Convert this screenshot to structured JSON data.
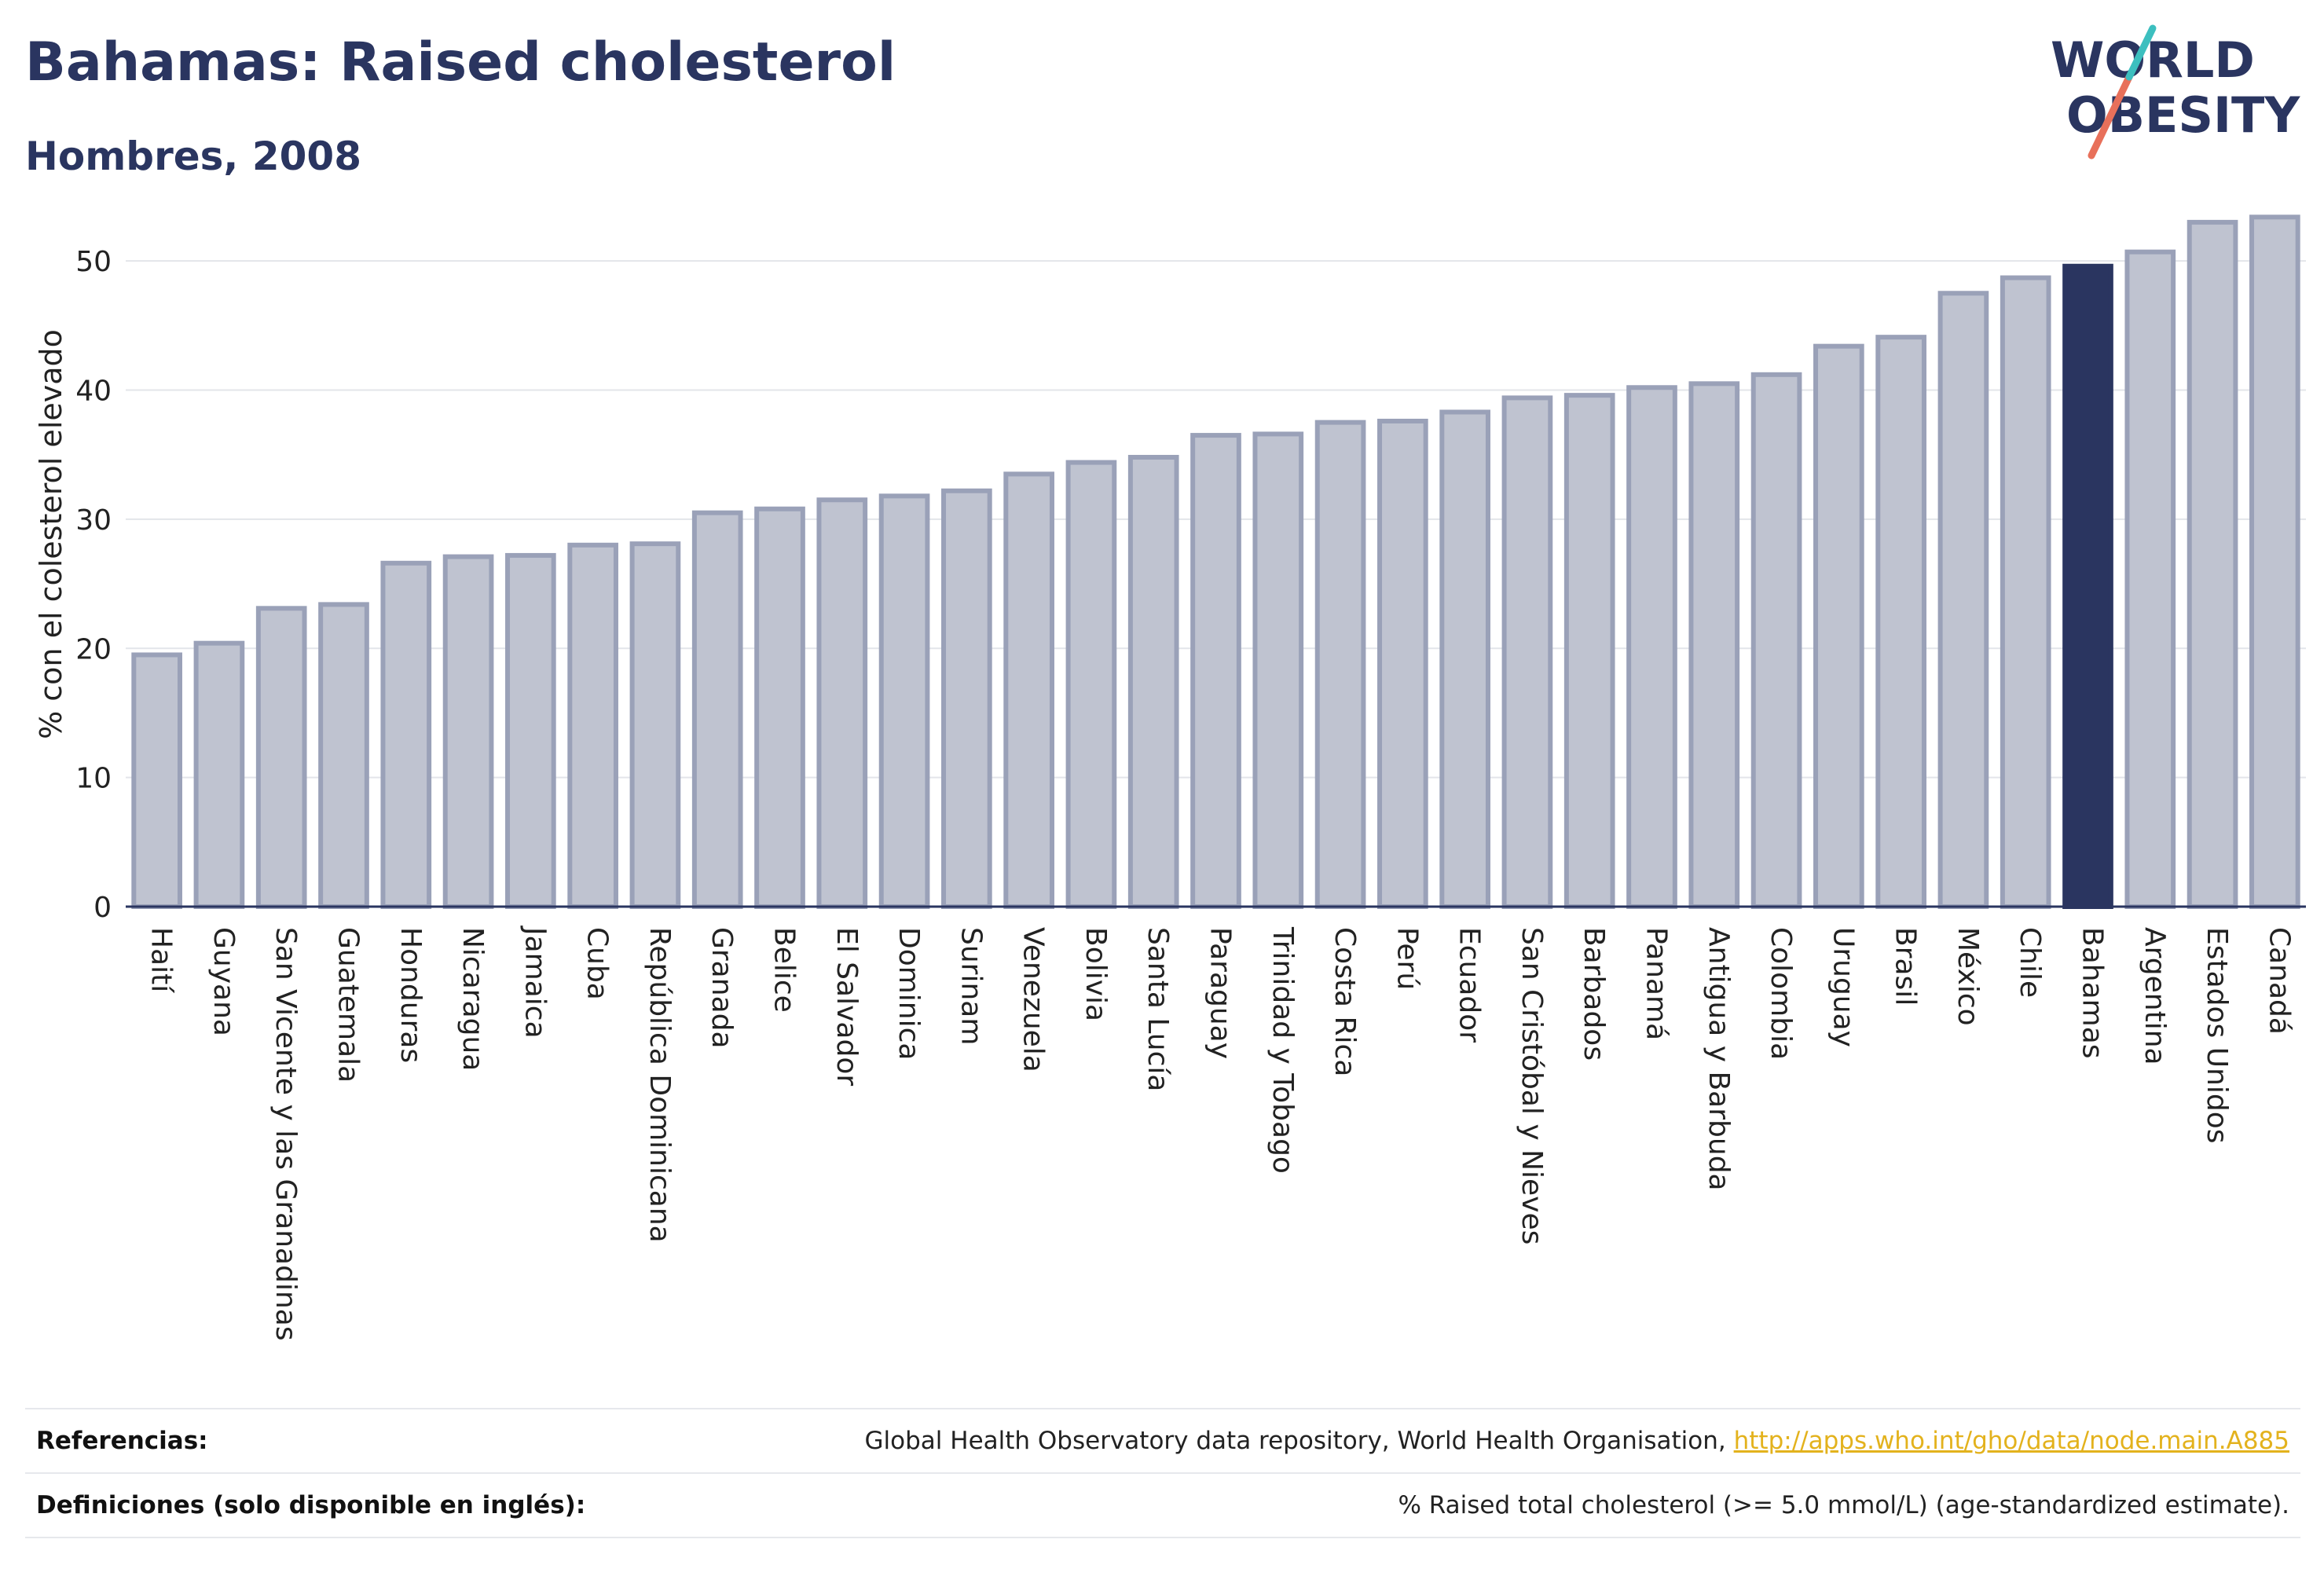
{
  "header": {
    "title": "Bahamas: Raised cholesterol",
    "subtitle": "Hombres, 2008"
  },
  "logo": {
    "line1": "WORLD",
    "line2": "OBESITY"
  },
  "colors": {
    "bar": "#bfc3d0",
    "bar_border": "#9aa1b8",
    "highlight": "#2a3560",
    "title": "#2a3560",
    "link": "#e3b21d"
  },
  "chart_data": {
    "type": "bar",
    "ylabel": "% con el colesterol elevado",
    "xlabel": "",
    "ylim": [
      0,
      55
    ],
    "yticks": [
      0,
      10,
      20,
      30,
      40,
      50
    ],
    "grid": true,
    "highlight": "Bahamas",
    "categories": [
      "Haití",
      "Guyana",
      "San Vicente y las Granadinas",
      "Guatemala",
      "Honduras",
      "Nicaragua",
      "Jamaica",
      "Cuba",
      "República Dominicana",
      "Granada",
      "Belice",
      "El Salvador",
      "Dominica",
      "Surinam",
      "Venezuela",
      "Bolivia",
      "Santa Lucía",
      "Paraguay",
      "Trinidad y Tobago",
      "Costa Rica",
      "Perú",
      "Ecuador",
      "San Cristóbal y Nieves",
      "Barbados",
      "Panamá",
      "Antigua y Barbuda",
      "Colombia",
      "Uruguay",
      "Brasil",
      "México",
      "Chile",
      "Bahamas",
      "Argentina",
      "Estados Unidos",
      "Canadá"
    ],
    "values": [
      19.5,
      20.4,
      23.1,
      23.4,
      26.6,
      27.1,
      27.2,
      28.0,
      28.1,
      30.5,
      30.8,
      31.5,
      31.8,
      32.2,
      33.5,
      34.4,
      34.8,
      36.5,
      36.6,
      37.5,
      37.6,
      38.3,
      39.4,
      39.6,
      40.2,
      40.5,
      41.2,
      43.4,
      44.1,
      47.5,
      48.7,
      49.6,
      50.7,
      53.0,
      53.4
    ]
  },
  "footer": {
    "references_label": "Referencias:",
    "references_text": "Global Health Observatory data repository, World Health Organisation, ",
    "references_link": "http://apps.who.int/gho/data/node.main.A885",
    "definitions_label": "Definiciones (solo disponible en inglés):",
    "definitions_text": "% Raised total cholesterol (>= 5.0 mmol/L) (age-standardized estimate)."
  }
}
